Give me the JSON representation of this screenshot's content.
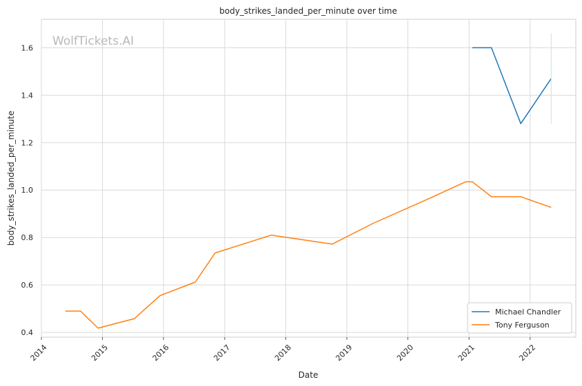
{
  "chart_data": {
    "type": "line",
    "title": "body_strikes_landed_per_minute over time",
    "xlabel": "Date",
    "ylabel": "body_strikes_landed_per_minute",
    "watermark": "WolfTickets.AI",
    "x_tick_labels": [
      "2014",
      "2015",
      "2016",
      "2017",
      "2018",
      "2019",
      "2020",
      "2021",
      "2022"
    ],
    "y_tick_labels": [
      "0.4",
      "0.6",
      "0.8",
      "1.0",
      "1.2",
      "1.4",
      "1.6"
    ],
    "xlim": [
      "2014-01-01",
      "2022-10-01"
    ],
    "ylim": [
      0.38,
      1.72
    ],
    "grid": true,
    "legend_position": "lower-right",
    "series": [
      {
        "name": "Michael Chandler",
        "color": "#1f77b4",
        "x": [
          "2021-01-20",
          "2021-05-15",
          "2021-11-06",
          "2022-05-07"
        ],
        "y": [
          1.6,
          1.6,
          1.28,
          1.47
        ]
      },
      {
        "name": "Tony Ferguson",
        "color": "#ff7f0e",
        "x": [
          "2014-05-24",
          "2014-08-23",
          "2014-12-06",
          "2015-07-11",
          "2015-12-11",
          "2016-07-09",
          "2016-11-05",
          "2017-10-07",
          "2018-10-06",
          "2019-06-08",
          "2020-05-09",
          "2020-12-12",
          "2021-01-20",
          "2021-05-15",
          "2021-11-06",
          "2022-05-07"
        ],
        "y": [
          0.49,
          0.49,
          0.418,
          0.458,
          0.555,
          0.612,
          0.735,
          0.81,
          0.772,
          0.86,
          0.965,
          1.035,
          1.035,
          0.972,
          0.972,
          0.927
        ]
      }
    ]
  }
}
